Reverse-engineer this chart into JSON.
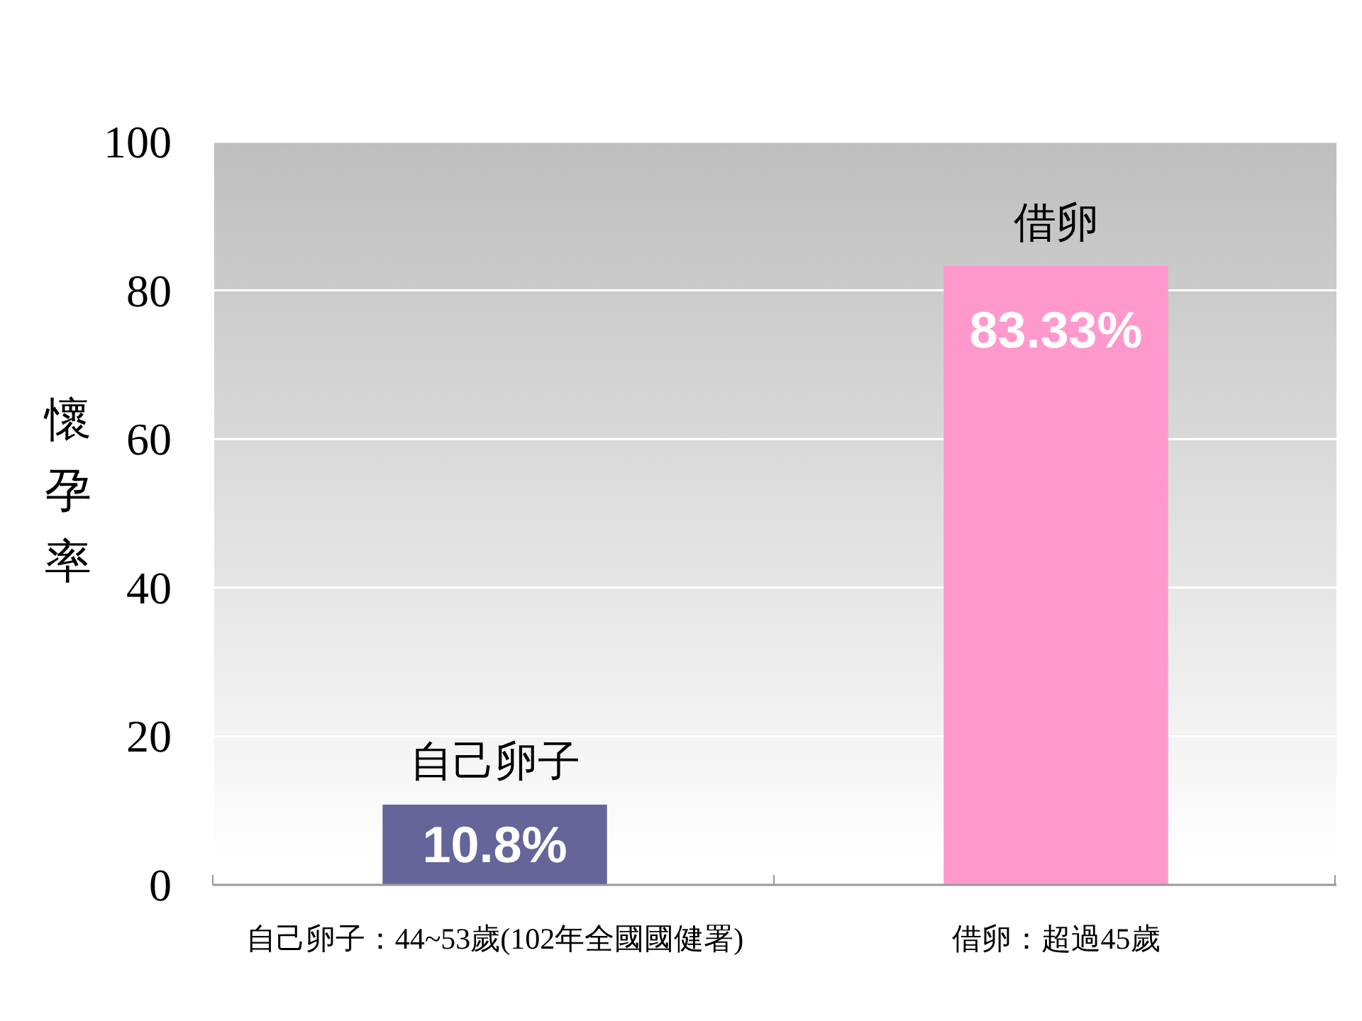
{
  "chart_data": {
    "type": "bar",
    "ylabel": "懷孕率",
    "categories": [
      "自己卵子：44~53歲(102年全國國健署)",
      "借卵：超過45歲"
    ],
    "values": [
      10.8,
      83.33
    ],
    "colors": [
      "#65659a",
      "#ff99cc"
    ],
    "value_labels": [
      "10.8%",
      "83.33%"
    ],
    "annotations": [
      {
        "text": "自己卵子",
        "x": "自己卵子：44~53歲(102年全國國健署)",
        "y": 10.8
      },
      {
        "text": "借卵",
        "x": "借卵：超過45歲",
        "y": 83.33
      }
    ],
    "ylim": [
      0,
      100
    ],
    "yticks": [
      0,
      20,
      40,
      60,
      80,
      100
    ],
    "grid": "y"
  }
}
